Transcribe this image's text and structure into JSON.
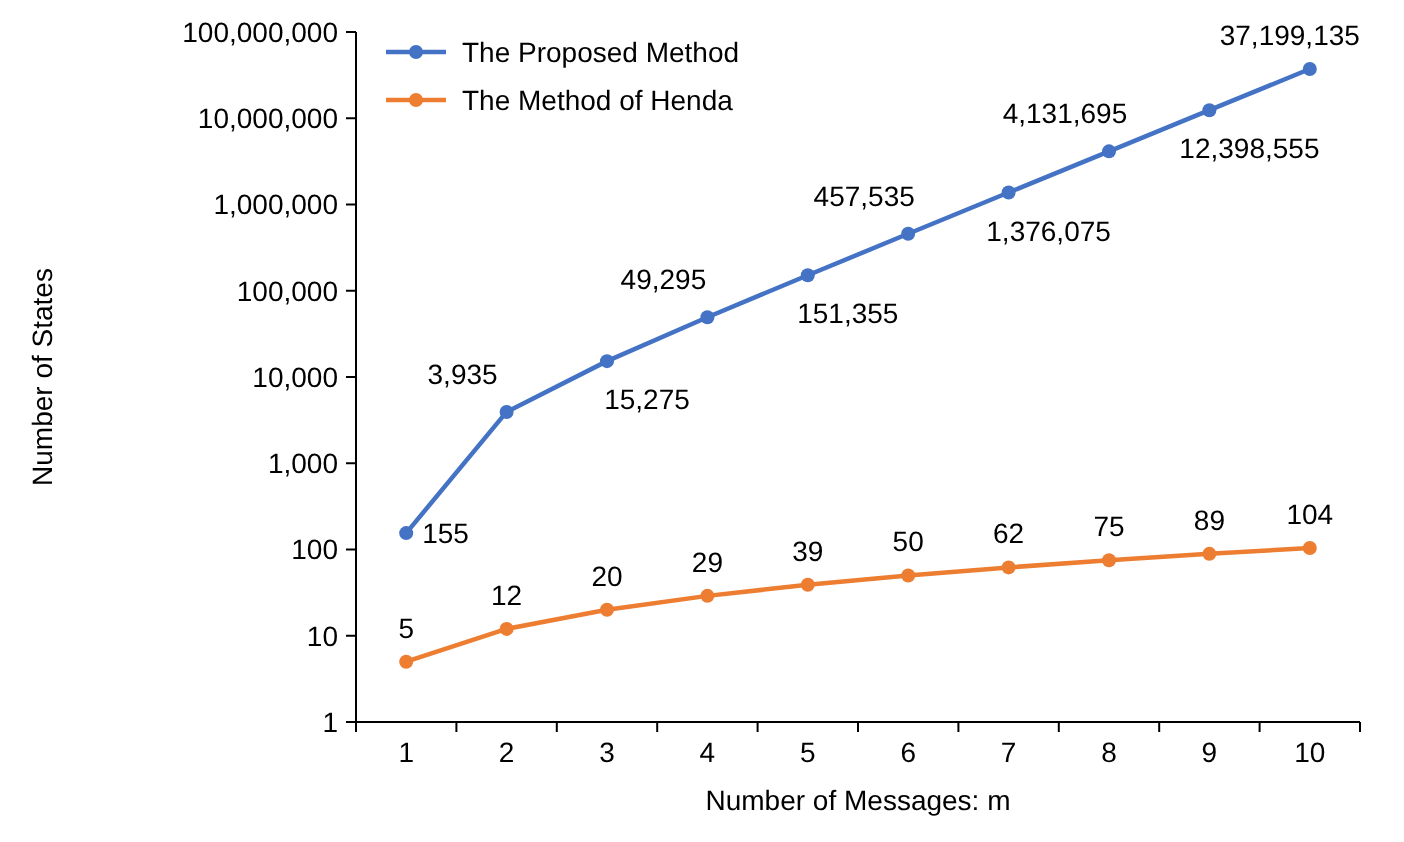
{
  "chart_data": {
    "type": "line",
    "xlabel": "Number of Messages: m",
    "ylabel": "Number of States",
    "categories": [
      "1",
      "2",
      "3",
      "4",
      "5",
      "6",
      "7",
      "8",
      "9",
      "10"
    ],
    "series": [
      {
        "name": "The Proposed Method",
        "color": "#4472c4",
        "values": [
          155,
          3935,
          15275,
          49295,
          151355,
          457535,
          1376075,
          4131695,
          12398555,
          37199135
        ],
        "value_labels": [
          "155",
          "3,935",
          "15,275",
          "49,295",
          "151,355",
          "457,535",
          "1,376,075",
          "4,131,695",
          "12,398,555",
          "37,199,135"
        ]
      },
      {
        "name": "The Method of Henda",
        "color": "#ed7d31",
        "values": [
          5,
          12,
          20,
          29,
          39,
          50,
          62,
          75,
          89,
          104
        ],
        "value_labels": [
          "5",
          "12",
          "20",
          "29",
          "39",
          "50",
          "62",
          "75",
          "89",
          "104"
        ]
      }
    ],
    "log": true,
    "ylim": [
      1,
      100000000
    ],
    "yticks": [
      {
        "value": 1,
        "label": "1"
      },
      {
        "value": 10,
        "label": "10"
      },
      {
        "value": 100,
        "label": "100"
      },
      {
        "value": 1000,
        "label": "1,000"
      },
      {
        "value": 10000,
        "label": "10,000"
      },
      {
        "value": 100000,
        "label": "100,000"
      },
      {
        "value": 1000000,
        "label": "1,000,000"
      },
      {
        "value": 10000000,
        "label": "10,000,000"
      },
      {
        "value": 100000000,
        "label": "100,000,000"
      }
    ],
    "legend": "top left",
    "marker": "circle",
    "grid": false
  }
}
